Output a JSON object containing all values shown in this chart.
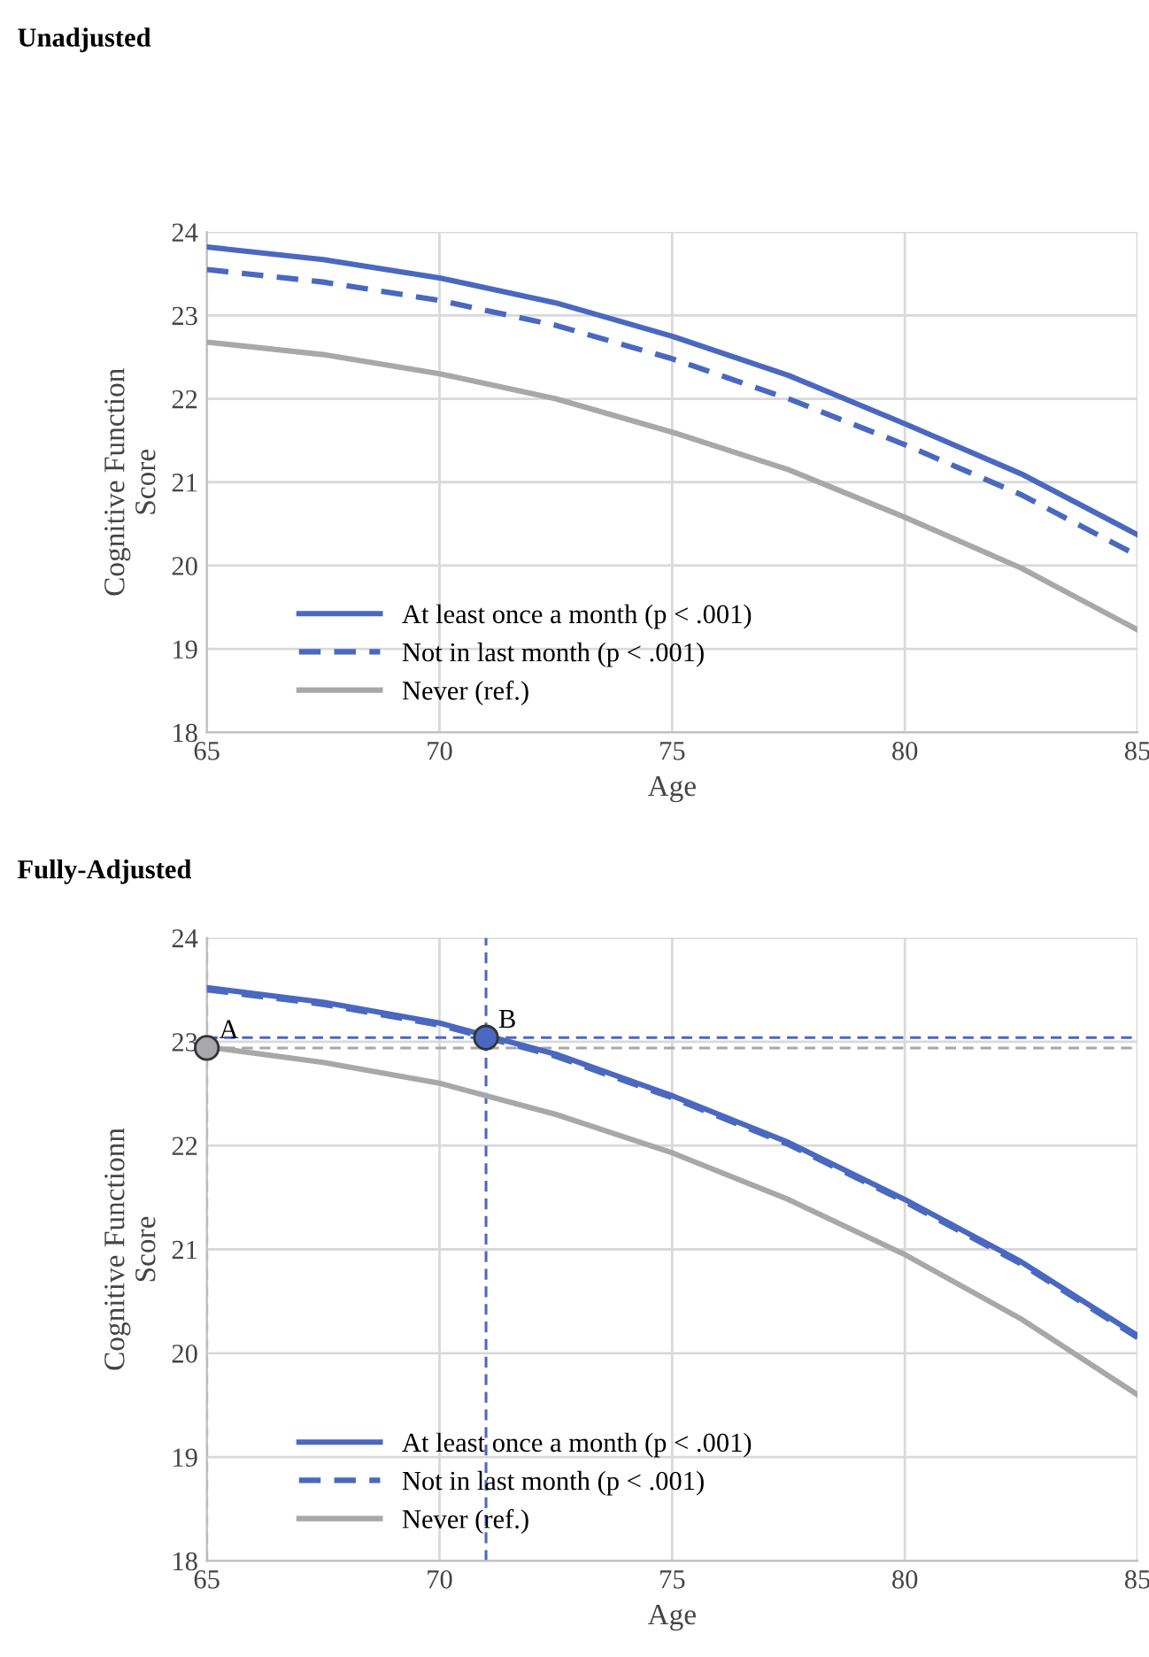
{
  "chart_data": [
    {
      "type": "line",
      "title": "Unadjusted",
      "xlabel": "Age",
      "ylabel": "Cognitive Function\nScore",
      "x": [
        65,
        67.5,
        70,
        72.5,
        75,
        77.5,
        80,
        82.5,
        85
      ],
      "xlim": [
        65,
        85
      ],
      "xticks": [
        65,
        70,
        75,
        80,
        85
      ],
      "ylim": [
        18,
        24
      ],
      "yticks": [
        18,
        19,
        20,
        21,
        22,
        23,
        24
      ],
      "grid": true,
      "legend": "bottom left",
      "series": [
        {
          "name": "At least once a month (p < .001)",
          "color": "#4a68c0",
          "line_style": "solid",
          "values": [
            23.82,
            23.67,
            23.45,
            23.15,
            22.75,
            22.28,
            21.7,
            21.1,
            20.37
          ]
        },
        {
          "name": "Not in last month (p < .001)",
          "color": "#4a68c0",
          "line_style": "dashed",
          "values": [
            23.55,
            23.4,
            23.18,
            22.88,
            22.48,
            22.0,
            21.45,
            20.85,
            20.12
          ]
        },
        {
          "name": "Never (ref.)",
          "color": "#a8a8ab",
          "line_style": "solid",
          "values": [
            22.68,
            22.53,
            22.3,
            22.0,
            21.6,
            21.15,
            20.58,
            19.97,
            19.23
          ]
        }
      ]
    },
    {
      "type": "line",
      "title": "Fully-Adjusted",
      "xlabel": "Age",
      "ylabel": "Cognitive Functionn\nScore",
      "x": [
        65,
        67.5,
        70,
        72.5,
        75,
        77.5,
        80,
        82.5,
        85
      ],
      "xlim": [
        65,
        85
      ],
      "xticks": [
        65,
        70,
        75,
        80,
        85
      ],
      "ylim": [
        18,
        24
      ],
      "yticks": [
        18,
        19,
        20,
        21,
        22,
        23,
        24
      ],
      "grid": true,
      "legend": "bottom left",
      "series": [
        {
          "name": "At least once a month (p < .001)",
          "color": "#4a68c0",
          "line_style": "solid",
          "values": [
            23.52,
            23.38,
            23.18,
            22.88,
            22.48,
            22.03,
            21.48,
            20.88,
            20.17
          ]
        },
        {
          "name": "Not in last month (p < .001)",
          "color": "#4a68c0",
          "line_style": "dashed",
          "values": [
            23.5,
            23.36,
            23.16,
            22.86,
            22.46,
            22.01,
            21.46,
            20.86,
            20.15
          ]
        },
        {
          "name": "Never (ref.)",
          "color": "#a8a8ab",
          "line_style": "solid",
          "values": [
            22.95,
            22.8,
            22.6,
            22.3,
            21.93,
            21.48,
            20.95,
            20.33,
            19.6
          ]
        },
        {
          "type": "scatter",
          "marker": "circle",
          "x": [
            65
          ],
          "color": "#a8a8ab",
          "values": [
            22.94
          ]
        },
        {
          "type": "scatter",
          "marker": "circle",
          "x": [
            71
          ],
          "color": "#4a68c0",
          "values": [
            23.04
          ]
        }
      ],
      "ref_lines": [
        {
          "axis": "y",
          "value": 23.04,
          "color": "#4a68c0",
          "line_style": "dashed"
        },
        {
          "axis": "y",
          "value": 22.94,
          "color": "#a8a8ab",
          "line_style": "dashed"
        },
        {
          "axis": "x",
          "value": 71,
          "color": "#4a68c0",
          "line_style": "dashed"
        },
        {
          "axis": "x",
          "value": 65,
          "color": "#a8a8ab",
          "line_style": "dashed"
        }
      ],
      "annotations": [
        {
          "text": "A",
          "x": 65,
          "y": 22.94
        },
        {
          "text": "B",
          "x": 71,
          "y": 23.04
        }
      ]
    }
  ]
}
